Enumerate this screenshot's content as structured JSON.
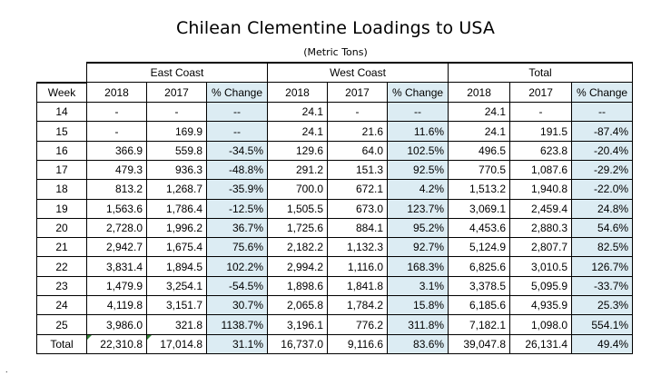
{
  "title": "Chilean Clementine Loadings to USA",
  "subtitle": "(Metric Tons)",
  "groups": [
    "East Coast",
    "West Coast",
    "Total"
  ],
  "columns": {
    "week": "Week",
    "y2018": "2018",
    "y2017": "2017",
    "change": "% Change"
  },
  "rows": [
    {
      "week": "14",
      "east": [
        "-",
        "-",
        "--"
      ],
      "west": [
        "24.1",
        "-",
        "--"
      ],
      "total": [
        "24.1",
        "-",
        "--"
      ]
    },
    {
      "week": "15",
      "east": [
        "-",
        "169.9",
        "--"
      ],
      "west": [
        "24.1",
        "21.6",
        "11.6%"
      ],
      "total": [
        "24.1",
        "191.5",
        "-87.4%"
      ]
    },
    {
      "week": "16",
      "east": [
        "366.9",
        "559.8",
        "-34.5%"
      ],
      "west": [
        "129.6",
        "64.0",
        "102.5%"
      ],
      "total": [
        "496.5",
        "623.8",
        "-20.4%"
      ]
    },
    {
      "week": "17",
      "east": [
        "479.3",
        "936.3",
        "-48.8%"
      ],
      "west": [
        "291.2",
        "151.3",
        "92.5%"
      ],
      "total": [
        "770.5",
        "1,087.6",
        "-29.2%"
      ]
    },
    {
      "week": "18",
      "east": [
        "813.2",
        "1,268.7",
        "-35.9%"
      ],
      "west": [
        "700.0",
        "672.1",
        "4.2%"
      ],
      "total": [
        "1,513.2",
        "1,940.8",
        "-22.0%"
      ]
    },
    {
      "week": "19",
      "east": [
        "1,563.6",
        "1,786.4",
        "-12.5%"
      ],
      "west": [
        "1,505.5",
        "673.0",
        "123.7%"
      ],
      "total": [
        "3,069.1",
        "2,459.4",
        "24.8%"
      ]
    },
    {
      "week": "20",
      "east": [
        "2,728.0",
        "1,996.2",
        "36.7%"
      ],
      "west": [
        "1,725.6",
        "884.1",
        "95.2%"
      ],
      "total": [
        "4,453.6",
        "2,880.3",
        "54.6%"
      ]
    },
    {
      "week": "21",
      "east": [
        "2,942.7",
        "1,675.4",
        "75.6%"
      ],
      "west": [
        "2,182.2",
        "1,132.3",
        "92.7%"
      ],
      "total": [
        "5,124.9",
        "2,807.7",
        "82.5%"
      ]
    },
    {
      "week": "22",
      "east": [
        "3,831.4",
        "1,894.5",
        "102.2%"
      ],
      "west": [
        "2,994.2",
        "1,116.0",
        "168.3%"
      ],
      "total": [
        "6,825.6",
        "3,010.5",
        "126.7%"
      ]
    },
    {
      "week": "23",
      "east": [
        "1,479.9",
        "3,254.1",
        "-54.5%"
      ],
      "west": [
        "1,898.6",
        "1,841.8",
        "3.1%"
      ],
      "total": [
        "3,378.5",
        "5,095.9",
        "-33.7%"
      ]
    },
    {
      "week": "24",
      "east": [
        "4,119.8",
        "3,151.7",
        "30.7%"
      ],
      "west": [
        "2,065.8",
        "1,784.2",
        "15.8%"
      ],
      "total": [
        "6,185.6",
        "4,935.9",
        "25.3%"
      ]
    },
    {
      "week": "25",
      "east": [
        "3,986.0",
        "321.8",
        "1138.7%"
      ],
      "west": [
        "3,196.1",
        "776.2",
        "311.8%"
      ],
      "total": [
        "7,182.1",
        "1,098.0",
        "554.1%"
      ]
    }
  ],
  "total_row": {
    "label": "Total",
    "east": [
      "22,310.8",
      "17,014.8",
      "31.1%"
    ],
    "west": [
      "16,737.0",
      "9,116.6",
      "83.6%"
    ],
    "total": [
      "39,047.8",
      "26,131.4",
      "49.4%"
    ]
  },
  "colors": {
    "change_cell_fill": "#dcecf3",
    "error_marker": "#2e7d32"
  }
}
